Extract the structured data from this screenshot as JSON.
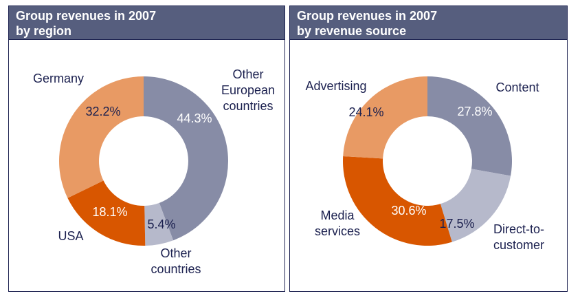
{
  "chart_data": [
    {
      "type": "pie",
      "variant": "donut",
      "title": "Group revenues in 2007",
      "subtitle": "by region",
      "categories": [
        "Other European countries",
        "Other countries",
        "USA",
        "Germany"
      ],
      "values": [
        44.3,
        5.4,
        18.1,
        32.2
      ],
      "value_labels": [
        "44.3%",
        "5.4%",
        "18.1%",
        "32.2%"
      ],
      "category_labels": [
        [
          "Other",
          "European",
          "countries"
        ],
        [
          "Other",
          "countries"
        ],
        [
          "USA"
        ],
        [
          "Germany"
        ]
      ],
      "colors": [
        "#878ca6",
        "#b6b9cb",
        "#d85600",
        "#e89a64"
      ],
      "value_label_colors": [
        "#ffffff",
        "#1a1f4e",
        "#ffffff",
        "#1a1f4e"
      ]
    },
    {
      "type": "pie",
      "variant": "donut",
      "title": "Group revenues in 2007",
      "subtitle": "by revenue source",
      "categories": [
        "Content",
        "Direct-to-customer",
        "Media services",
        "Advertising"
      ],
      "values": [
        27.8,
        17.5,
        30.6,
        24.1
      ],
      "value_labels": [
        "27.8%",
        "17.5%",
        "30.6%",
        "24.1%"
      ],
      "category_labels": [
        [
          "Content"
        ],
        [
          "Direct-to-",
          "customer"
        ],
        [
          "Media",
          "services"
        ],
        [
          "Advertising"
        ]
      ],
      "colors": [
        "#878ca6",
        "#b6b9cb",
        "#d85600",
        "#e89a64"
      ],
      "value_label_colors": [
        "#ffffff",
        "#1a1f4e",
        "#ffffff",
        "#1a1f4e"
      ]
    }
  ],
  "colors": {
    "header_bg": "#565e7e",
    "border": "#1a1f4e",
    "label_text": "#1a1f4e"
  }
}
